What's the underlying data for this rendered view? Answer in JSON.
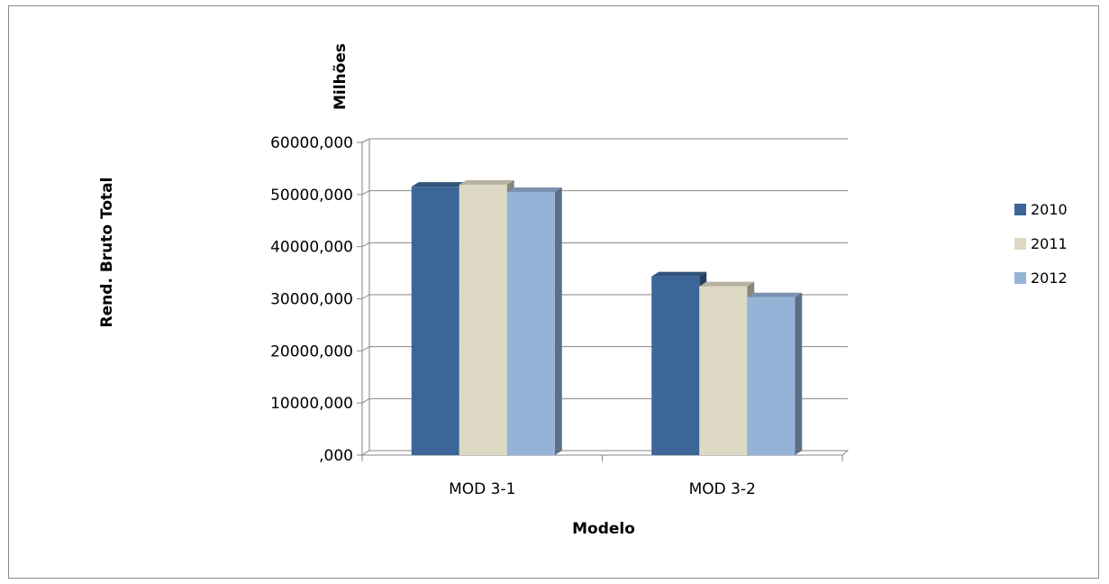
{
  "chart_data": {
    "type": "bar",
    "title": "",
    "xlabel": "Modelo",
    "ylabel": "Rend. Bruto Total",
    "y_unit_label": "Milhões",
    "categories": [
      "MOD 3-1",
      "MOD 3-2"
    ],
    "series": [
      {
        "name": "2010",
        "values": [
          51500,
          34300
        ],
        "color": "#3c6697"
      },
      {
        "name": "2011",
        "values": [
          51900,
          32400
        ],
        "color": "#ddd9c4"
      },
      {
        "name": "2012",
        "values": [
          50500,
          30300
        ],
        "color": "#95b3d7"
      }
    ],
    "ylim": [
      0,
      60000
    ],
    "yticks": [
      0,
      10000,
      20000,
      30000,
      40000,
      50000,
      60000
    ],
    "ytick_labels": [
      ",000",
      "10000,000",
      "20000,000",
      "30000,000",
      "40000,000",
      "50000,000",
      "60000,000"
    ],
    "grid": true,
    "style": "3d-clustered-column",
    "legend_position": "right"
  }
}
